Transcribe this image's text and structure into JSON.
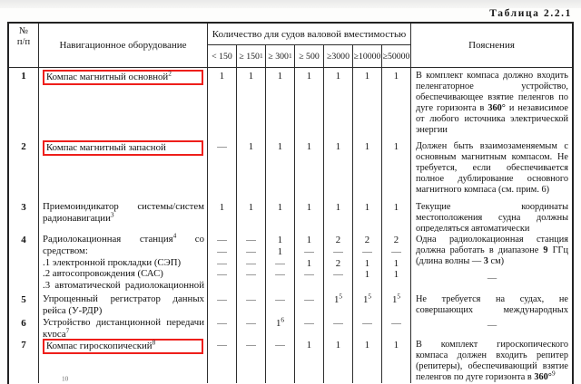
{
  "doc_title": "Таблица 2.2.1",
  "colors": {
    "highlight_box": "#ee1f1b",
    "border": "#2e2e2e"
  },
  "table": {
    "headers": {
      "num_line1": "№",
      "num_line2": "п/п",
      "equipment": "Навигационное оборудование",
      "quantity_group": "Количество для судов валовой вместимостью",
      "size_columns": [
        "< 150",
        "≥ 150^{1}",
        "≥ 300^{1}",
        "≥ 500",
        "≥3000",
        "≥10000",
        "≥50000"
      ],
      "explanation": "Пояснения"
    },
    "rows": [
      {
        "num": "1",
        "highlighted": true,
        "lines": [
          {
            "name": "Компас магнитный основной^{2}",
            "values": [
              "1",
              "1",
              "1",
              "1",
              "1",
              "1",
              "1"
            ]
          }
        ],
        "explanation": "В комплект компаса должно входить пеленгаторное устройство, обеспечивающее взятие пеленгов по дуге горизонта в **360°** и независимое от любого источника электрической энергии"
      },
      {
        "num": "2",
        "highlighted": true,
        "lines": [
          {
            "name": "Компас магнитный запасной",
            "values": [
              "—",
              "1",
              "1",
              "1",
              "1",
              "1",
              "1"
            ]
          }
        ],
        "explanation": "Должен быть взаимозаменяемым с основным магнитным компасом. Не требуется, если обеспечивается полное дублирование основного магнитного компаса (см. прим. 6)"
      },
      {
        "num": "3",
        "highlighted": false,
        "lines": [
          {
            "name": "Приемоиндикатор системы/систем радионавигации^{3}",
            "values": [
              "1",
              "1",
              "1",
              "1",
              "1",
              "1",
              "1"
            ]
          }
        ],
        "explanation": "Текущие координаты местоположения судна должны определяться автоматически"
      },
      {
        "num": "4",
        "highlighted": false,
        "lines": [
          {
            "name": "Радиолокационная станция^{4} со средством:",
            "values": [
              "—",
              "—",
              "1",
              "1",
              "2",
              "2",
              "2"
            ]
          },
          {
            "name": ".1 электронной прокладки (СЭП)",
            "values": [
              "—",
              "—",
              "1",
              "—",
              "—",
              "—",
              "—"
            ]
          },
          {
            "name": ".2 автосопровождения (САС)",
            "values": [
              "—",
              "—",
              "—",
              "1",
              "2",
              "1",
              "1"
            ]
          },
          {
            "name": ".3 автоматической радиолокационной прокладки (САРП)",
            "values": [
              "—",
              "—",
              "—",
              "—",
              "—",
              "1",
              "1"
            ]
          }
        ],
        "explanation": "Одна радиолокационная станция должна работать в диапазоне **9** ГГц (длина волны — **3** см)",
        "explanation_dash": true
      },
      {
        "num": "5",
        "highlighted": false,
        "lines": [
          {
            "name": "Упрощенный регистратор данных рейса (У-РДР)",
            "values": [
              "—",
              "—",
              "—",
              "—",
              "1^{5}",
              "1^{5}",
              "1^{5}"
            ]
          }
        ],
        "explanation": "Не требуется на судах, не совершающих международных рейсов"
      },
      {
        "num": "6",
        "highlighted": false,
        "lines": [
          {
            "name": "Устройство дистанционной передачи курса^{7}",
            "values": [
              "—",
              "—",
              "1^{6}",
              "—",
              "—",
              "—",
              "—"
            ]
          }
        ],
        "explanation": "—",
        "explanation_centered": true
      },
      {
        "num": "7",
        "highlighted": true,
        "lines": [
          {
            "name": "Компас гироскопический^{8}",
            "values": [
              "—",
              "—",
              "—",
              "1",
              "1",
              "1",
              "1"
            ]
          }
        ],
        "explanation": "В комплект гироскопического компаса должен входить репитер (репитеры), обеспечивающий взятие пеленгов по дуге горизонта в **360°**^{9}"
      }
    ],
    "partial_next_row_fragment": "10"
  }
}
